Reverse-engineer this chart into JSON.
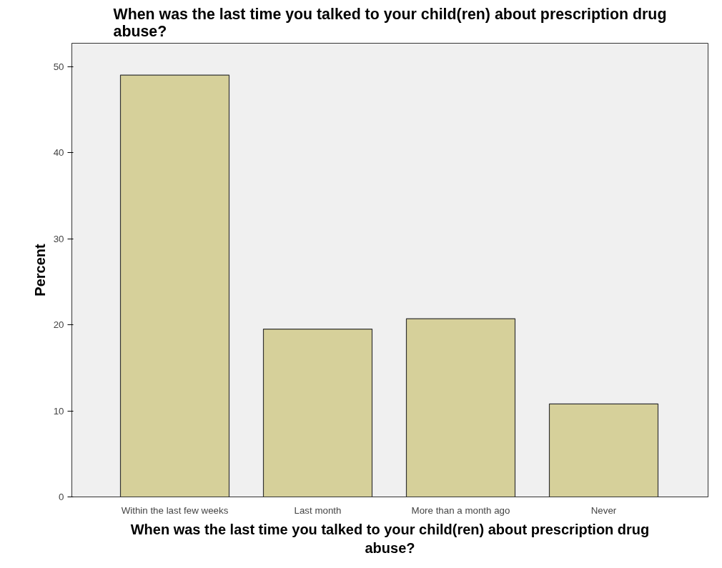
{
  "chart_data": {
    "type": "bar",
    "title": "When was the last time you talked to your child(ren) about prescription drug abuse?",
    "xlabel": "When was the last time you talked to your child(ren) about prescription drug abuse?",
    "ylabel": "Percent",
    "categories": [
      "Within the last few weeks",
      "Last month",
      "More than a month ago",
      "Never"
    ],
    "values": [
      49,
      19.5,
      20.7,
      10.8
    ],
    "color": "#d6d09a",
    "ylim": [
      0,
      52.7
    ],
    "yticks": [
      0,
      10,
      20,
      30,
      40,
      50
    ],
    "grid": false
  }
}
